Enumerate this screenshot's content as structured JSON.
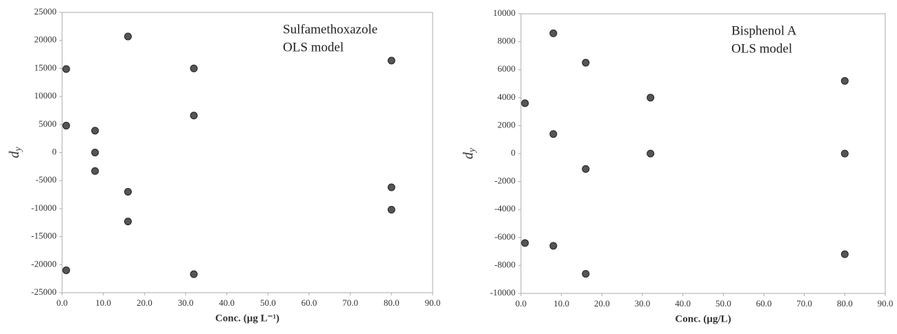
{
  "chart_data": [
    {
      "type": "scatter",
      "annotations": [
        "Sulfamethoxazole",
        "OLS model"
      ],
      "x_label": "Conc. (µg L⁻¹)",
      "y_label": {
        "text": "d",
        "subscript": "y"
      },
      "x": [
        1,
        1,
        1,
        8,
        8,
        8,
        16,
        16,
        16,
        32,
        32,
        32,
        80,
        80,
        80
      ],
      "values": [
        14900,
        4800,
        -21000,
        3900,
        0,
        -3300,
        20700,
        -7000,
        -12300,
        15000,
        6600,
        -21700,
        16400,
        -6200,
        -10200
      ],
      "color": "#555555",
      "xlim": [
        0,
        90
      ],
      "xticks": [
        {
          "value": 0,
          "label": "0.0"
        },
        {
          "value": 10,
          "label": "10.0"
        },
        {
          "value": 20,
          "label": "20.0"
        },
        {
          "value": 30,
          "label": "30.0"
        },
        {
          "value": 40,
          "label": "40.0"
        },
        {
          "value": 50,
          "label": "50.0"
        },
        {
          "value": 60,
          "label": "60.0"
        },
        {
          "value": 70,
          "label": "70.0"
        },
        {
          "value": 80,
          "label": "80.0"
        },
        {
          "value": 90,
          "label": "90.0"
        }
      ],
      "ylim": [
        -25000,
        25000
      ],
      "yticks": [
        -25000,
        -20000,
        -15000,
        -10000,
        -5000,
        0,
        5000,
        10000,
        15000,
        20000,
        25000
      ],
      "grid": false
    },
    {
      "type": "scatter",
      "annotations": [
        "Bisphenol A",
        "OLS model"
      ],
      "x_label": "Conc. (µg/L)",
      "y_label": {
        "text": "d",
        "subscript": "y"
      },
      "x": [
        1,
        1,
        8,
        8,
        8,
        16,
        16,
        16,
        32,
        32,
        80,
        80,
        80
      ],
      "values": [
        3600,
        -6400,
        8600,
        1400,
        -6600,
        6500,
        -1100,
        -8600,
        4000,
        0,
        5200,
        0,
        -7200
      ],
      "color": "#555555",
      "xlim": [
        0,
        90
      ],
      "xticks": [
        {
          "value": 0,
          "label": "0.0"
        },
        {
          "value": 10,
          "label": "10.0"
        },
        {
          "value": 20,
          "label": "20.0"
        },
        {
          "value": 30,
          "label": "30.0"
        },
        {
          "value": 40,
          "label": "40.0"
        },
        {
          "value": 50,
          "label": "50.0"
        },
        {
          "value": 60,
          "label": "60.0"
        },
        {
          "value": 70,
          "label": "70.0"
        },
        {
          "value": 80,
          "label": "80.0"
        },
        {
          "value": 90,
          "label": "90.0"
        }
      ],
      "ylim": [
        -10000,
        10000
      ],
      "yticks": [
        -10000,
        -8000,
        -6000,
        -4000,
        -2000,
        0,
        2000,
        4000,
        6000,
        8000,
        10000
      ],
      "grid": false
    }
  ]
}
